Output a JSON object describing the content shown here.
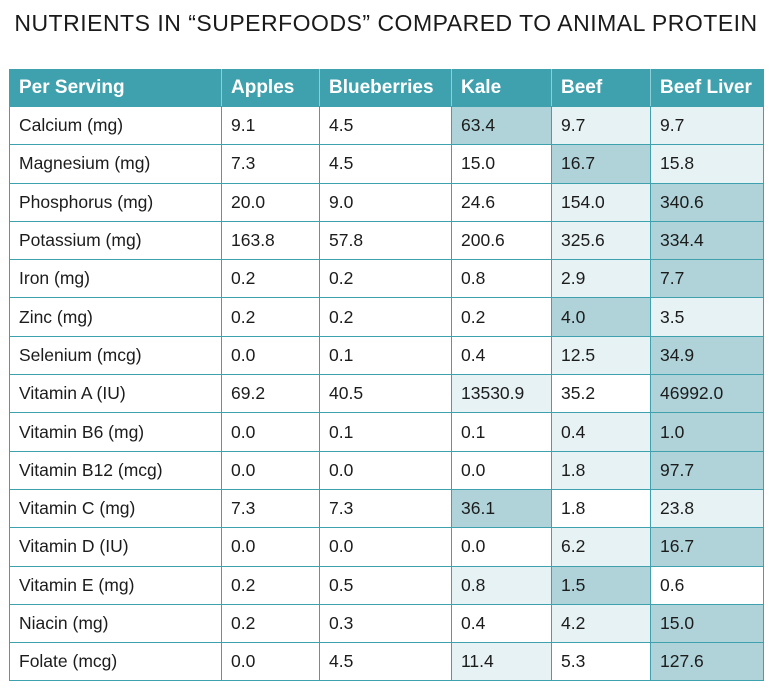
{
  "title": "NUTRIENTS IN “SUPERFOODS” COMPARED TO ANIMAL PROTEIN",
  "colors": {
    "header_bg": "#3fa1ad",
    "border": "#3fa1ad",
    "highlight_light": "#e7f2f4",
    "highlight_dark": "#afd3d9"
  },
  "table": {
    "headers": [
      "Per Serving",
      "Apples",
      "Blueberries",
      "Kale",
      "Beef",
      "Beef Liver"
    ],
    "rows": [
      {
        "label": "Calcium (mg)",
        "values": [
          "9.1",
          "4.5",
          "63.4",
          "9.7",
          "9.7"
        ],
        "shade": [
          "",
          "",
          "mid",
          "light",
          "light"
        ]
      },
      {
        "label": "Magnesium (mg)",
        "values": [
          "7.3",
          "4.5",
          "15.0",
          "16.7",
          "15.8"
        ],
        "shade": [
          "",
          "",
          "",
          "mid",
          "light"
        ]
      },
      {
        "label": "Phosphorus (mg)",
        "values": [
          "20.0",
          "9.0",
          "24.6",
          "154.0",
          "340.6"
        ],
        "shade": [
          "",
          "",
          "",
          "light",
          "mid"
        ]
      },
      {
        "label": "Potassium (mg)",
        "values": [
          "163.8",
          "57.8",
          "200.6",
          "325.6",
          "334.4"
        ],
        "shade": [
          "",
          "",
          "",
          "light",
          "mid"
        ]
      },
      {
        "label": "Iron (mg)",
        "values": [
          "0.2",
          "0.2",
          "0.8",
          "2.9",
          "7.7"
        ],
        "shade": [
          "",
          "",
          "",
          "light",
          "mid"
        ]
      },
      {
        "label": "Zinc (mg)",
        "values": [
          "0.2",
          "0.2",
          "0.2",
          "4.0",
          "3.5"
        ],
        "shade": [
          "",
          "",
          "",
          "mid",
          "light"
        ]
      },
      {
        "label": "Selenium (mcg)",
        "values": [
          "0.0",
          "0.1",
          "0.4",
          "12.5",
          "34.9"
        ],
        "shade": [
          "",
          "",
          "",
          "light",
          "mid"
        ]
      },
      {
        "label": "Vitamin A (IU)",
        "values": [
          "69.2",
          "40.5",
          "13530.9",
          "35.2",
          "46992.0"
        ],
        "shade": [
          "",
          "",
          "light",
          "",
          "mid"
        ]
      },
      {
        "label": "Vitamin B6 (mg)",
        "values": [
          "0.0",
          "0.1",
          "0.1",
          "0.4",
          "1.0"
        ],
        "shade": [
          "",
          "",
          "",
          "light",
          "mid"
        ]
      },
      {
        "label": "Vitamin B12 (mcg)",
        "values": [
          "0.0",
          "0.0",
          "0.0",
          "1.8",
          "97.7"
        ],
        "shade": [
          "",
          "",
          "",
          "light",
          "mid"
        ]
      },
      {
        "label": "Vitamin C (mg)",
        "values": [
          "7.3",
          "7.3",
          "36.1",
          "1.8",
          "23.8"
        ],
        "shade": [
          "",
          "",
          "mid",
          "",
          "light"
        ]
      },
      {
        "label": "Vitamin D (IU)",
        "values": [
          "0.0",
          "0.0",
          "0.0",
          "6.2",
          "16.7"
        ],
        "shade": [
          "",
          "",
          "",
          "light",
          "mid"
        ]
      },
      {
        "label": "Vitamin E (mg)",
        "values": [
          "0.2",
          "0.5",
          "0.8",
          "1.5",
          "0.6"
        ],
        "shade": [
          "",
          "",
          "light",
          "mid",
          ""
        ]
      },
      {
        "label": "Niacin (mg)",
        "values": [
          "0.2",
          "0.3",
          "0.4",
          "4.2",
          "15.0"
        ],
        "shade": [
          "",
          "",
          "",
          "light",
          "mid"
        ]
      },
      {
        "label": "Folate (mcg)",
        "values": [
          "0.0",
          "4.5",
          "11.4",
          "5.3",
          "127.6"
        ],
        "shade": [
          "",
          "",
          "light",
          "",
          "mid"
        ]
      }
    ]
  }
}
